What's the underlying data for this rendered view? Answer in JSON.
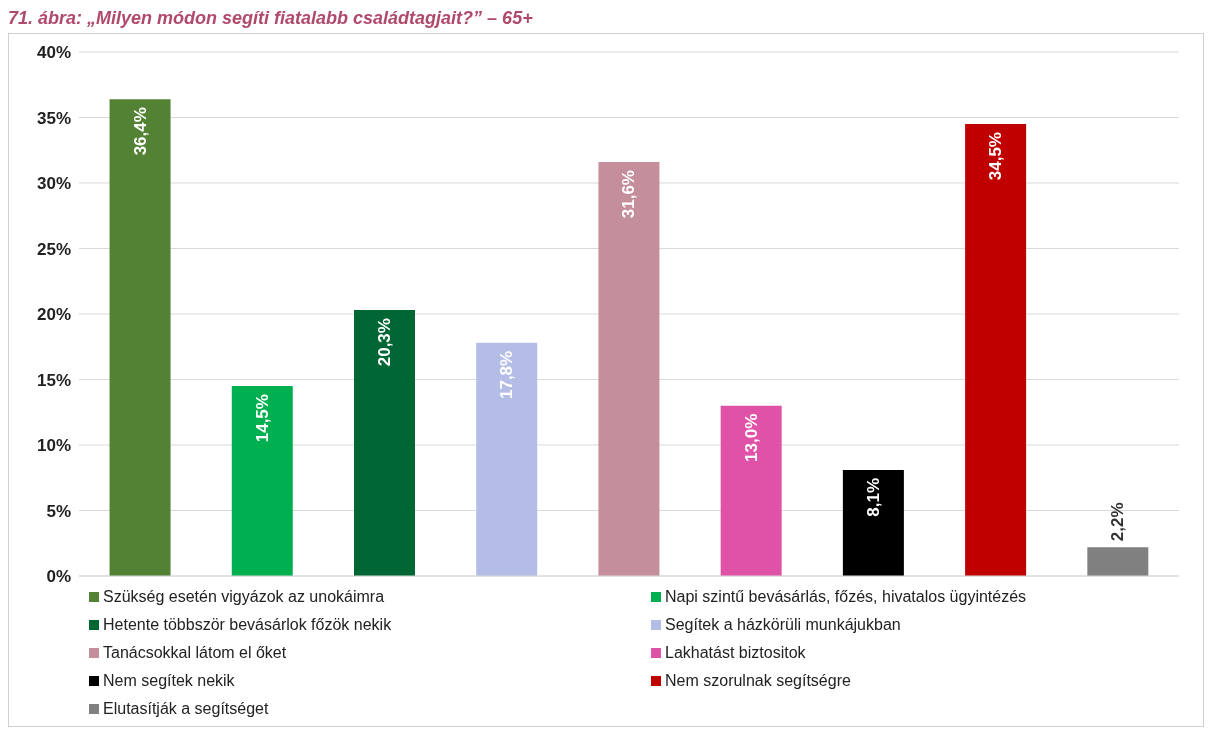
{
  "chart_data": {
    "type": "bar",
    "title": "71. ábra: „Milyen módon segíti fiatalabb családtagjait?” – 65+",
    "categories": [
      null,
      null,
      null,
      null,
      null,
      null,
      null,
      null,
      null
    ],
    "stacked": true,
    "ylim": [
      0,
      40
    ],
    "yticks": [
      {
        "value": 0,
        "label": "0%"
      },
      {
        "value": 5,
        "label": "5%"
      },
      {
        "value": 10,
        "label": "10%"
      },
      {
        "value": 15,
        "label": "15%"
      },
      {
        "value": 20,
        "label": "20%"
      },
      {
        "value": 25,
        "label": "25%"
      },
      {
        "value": 30,
        "label": "30%"
      },
      {
        "value": 35,
        "label": "35%"
      },
      {
        "value": 40,
        "label": "40%"
      }
    ],
    "grid": "y",
    "legend": "bottom",
    "series": [
      {
        "name": "Szükség esetén vigyázok az unokáimra",
        "color": "#548235",
        "values": [
          36.4,
          null,
          null,
          null,
          null,
          null,
          null,
          null,
          null
        ],
        "value_labels": [
          "36,4%",
          null,
          null,
          null,
          null,
          null,
          null,
          null,
          null
        ]
      },
      {
        "name": "Napi szintű bevásárlás, főzés, hivatalos ügyintézés",
        "color": "#00b050",
        "values": [
          null,
          14.5,
          null,
          null,
          null,
          null,
          null,
          null,
          null
        ],
        "value_labels": [
          null,
          "14,5%",
          null,
          null,
          null,
          null,
          null,
          null,
          null
        ]
      },
      {
        "name": "Hetente többször bevásárlok főzök nekik",
        "color": "#006633",
        "values": [
          null,
          null,
          20.3,
          null,
          null,
          null,
          null,
          null,
          null
        ],
        "value_labels": [
          null,
          null,
          "20,3%",
          null,
          null,
          null,
          null,
          null,
          null
        ]
      },
      {
        "name": "Segítek a házkörüli munkájukban",
        "color": "#b4bde6",
        "values": [
          null,
          null,
          null,
          17.8,
          null,
          null,
          null,
          null,
          null
        ],
        "value_labels": [
          null,
          null,
          null,
          "17,8%",
          null,
          null,
          null,
          null,
          null
        ]
      },
      {
        "name": "Tanácsokkal látom el őket",
        "color": "#c48e9a",
        "values": [
          null,
          null,
          null,
          null,
          31.6,
          null,
          null,
          null,
          null
        ],
        "value_labels": [
          null,
          null,
          null,
          null,
          "31,6%",
          null,
          null,
          null,
          null
        ]
      },
      {
        "name": "Lakhatást biztositok",
        "color": "#e052a8",
        "values": [
          null,
          null,
          null,
          null,
          null,
          13.0,
          null,
          null,
          null
        ],
        "value_labels": [
          null,
          null,
          null,
          null,
          null,
          "13,0%",
          null,
          null,
          null
        ]
      },
      {
        "name": "Nem segítek nekik",
        "color": "#000000",
        "values": [
          null,
          null,
          null,
          null,
          null,
          null,
          8.1,
          null,
          null
        ],
        "value_labels": [
          null,
          null,
          null,
          null,
          null,
          null,
          "8,1%",
          null,
          null
        ]
      },
      {
        "name": "Nem szorulnak segítségre",
        "color": "#c00000",
        "values": [
          null,
          null,
          null,
          null,
          null,
          null,
          null,
          34.5,
          null
        ],
        "value_labels": [
          null,
          null,
          null,
          null,
          null,
          null,
          null,
          "34,5%",
          null
        ]
      },
      {
        "name": "Elutasítják a segítséget",
        "color": "#808080",
        "values": [
          null,
          null,
          null,
          null,
          null,
          null,
          null,
          null,
          2.2
        ],
        "value_labels": [
          null,
          null,
          null,
          null,
          null,
          null,
          null,
          null,
          "2,2%"
        ]
      }
    ]
  }
}
